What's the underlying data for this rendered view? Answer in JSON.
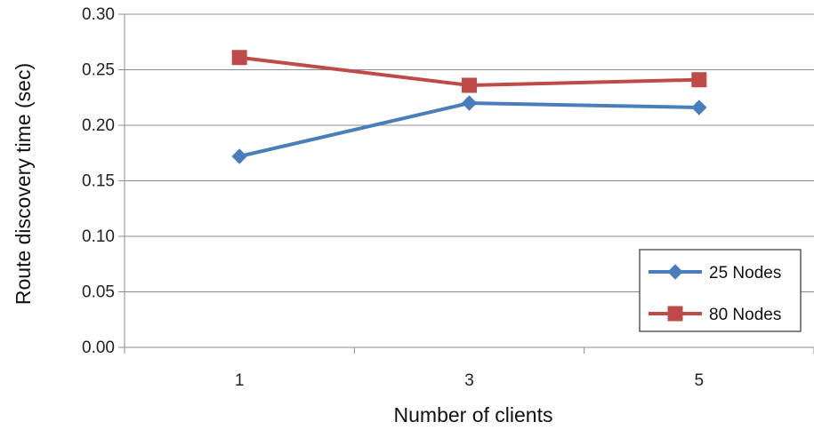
{
  "chart_data": {
    "type": "line",
    "title": "",
    "xlabel": "Number of clients",
    "ylabel": "Route discovery time (sec)",
    "categories": [
      "1",
      "3",
      "5"
    ],
    "ylim": [
      0,
      0.3
    ],
    "yticks": [
      "0.00",
      "0.05",
      "0.10",
      "0.15",
      "0.20",
      "0.25",
      "0.30"
    ],
    "grid": "horizontal",
    "legend_position": "bottom-right",
    "series": [
      {
        "name": "25 Nodes",
        "values": [
          0.172,
          0.22,
          0.216
        ],
        "color": "#4a7ebb",
        "marker": "diamond"
      },
      {
        "name": "80 Nodes",
        "values": [
          0.261,
          0.236,
          0.241
        ],
        "color": "#be4b48",
        "marker": "square"
      }
    ]
  }
}
